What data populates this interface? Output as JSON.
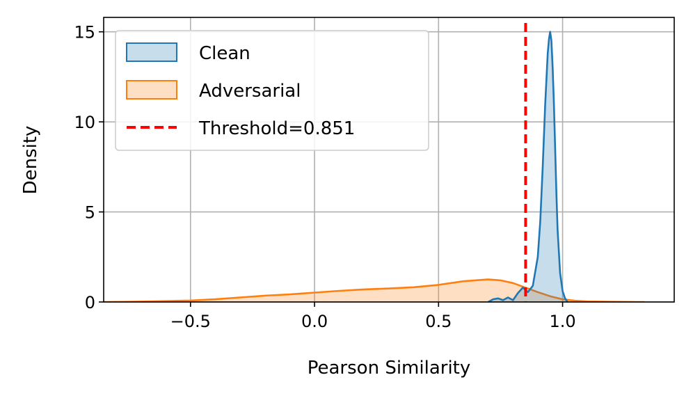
{
  "chart_data": {
    "type": "area",
    "xlabel": "Pearson Similarity",
    "ylabel": "Density",
    "xlim": [
      -0.85,
      1.45
    ],
    "ylim": [
      0,
      15.8
    ],
    "xticks": [
      -0.5,
      0.0,
      0.5,
      1.0
    ],
    "xtick_labels": [
      "−0.5",
      "0.0",
      "0.5",
      "1.0"
    ],
    "yticks": [
      0,
      5,
      10,
      15
    ],
    "ytick_labels": [
      "0",
      "5",
      "10",
      "15"
    ],
    "grid": true,
    "legend_position": "top-left",
    "series": [
      {
        "name": "Clean",
        "line_color": "#1f77b4",
        "fill_color": "#1f77b4",
        "x": [
          0.7,
          0.72,
          0.74,
          0.76,
          0.78,
          0.8,
          0.82,
          0.84,
          0.86,
          0.88,
          0.9,
          0.91,
          0.92,
          0.93,
          0.94,
          0.945,
          0.95,
          0.955,
          0.96,
          0.965,
          0.97,
          0.975,
          0.98,
          0.99,
          1.0,
          1.01,
          1.02
        ],
        "y": [
          0.0,
          0.15,
          0.2,
          0.1,
          0.25,
          0.1,
          0.5,
          0.8,
          0.55,
          0.9,
          2.5,
          4.5,
          7.5,
          11.0,
          13.8,
          14.6,
          15.0,
          14.5,
          13.0,
          11.0,
          8.5,
          6.0,
          4.0,
          1.6,
          0.6,
          0.2,
          0.0
        ]
      },
      {
        "name": "Adversarial",
        "line_color": "#ff7f0e",
        "fill_color": "#ff7f0e",
        "x": [
          -0.85,
          -0.75,
          -0.6,
          -0.5,
          -0.4,
          -0.3,
          -0.2,
          -0.1,
          0.0,
          0.1,
          0.2,
          0.3,
          0.4,
          0.5,
          0.6,
          0.7,
          0.75,
          0.8,
          0.85,
          0.9,
          0.95,
          1.0,
          1.05,
          1.1,
          1.2,
          1.3,
          1.33
        ],
        "y": [
          0.0,
          0.01,
          0.05,
          0.08,
          0.15,
          0.25,
          0.35,
          0.42,
          0.52,
          0.62,
          0.7,
          0.75,
          0.82,
          0.95,
          1.15,
          1.25,
          1.2,
          1.05,
          0.8,
          0.55,
          0.32,
          0.15,
          0.07,
          0.03,
          0.01,
          0.0,
          0.0
        ]
      }
    ],
    "threshold": {
      "name": "Threshold=0.851",
      "value": 0.851,
      "color": "#ff0000"
    }
  }
}
